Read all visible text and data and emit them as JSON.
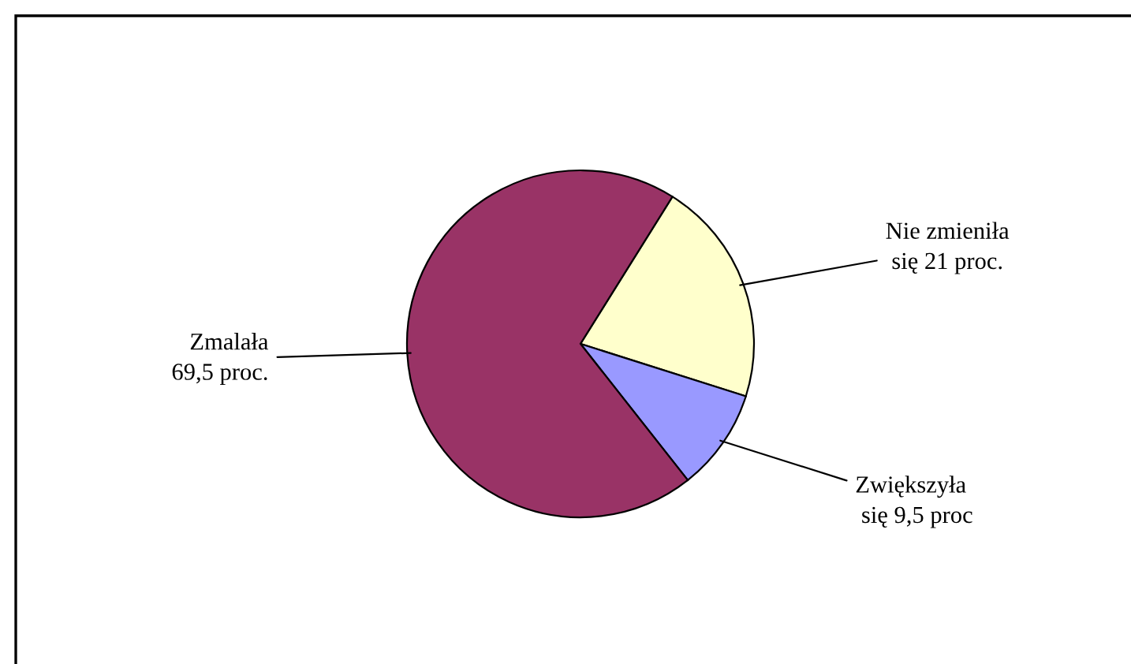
{
  "chart_data": {
    "type": "pie",
    "categories": [
      "Nie zmieniła\n się 21 proc.",
      "Zwiększyła\n się 9,5 proc",
      "Zmalała\n69,5 proc."
    ],
    "values": [
      21,
      9.5,
      69.5
    ],
    "colors": [
      "#ffffcc",
      "#9999ff",
      "#993366"
    ],
    "legend": false
  }
}
